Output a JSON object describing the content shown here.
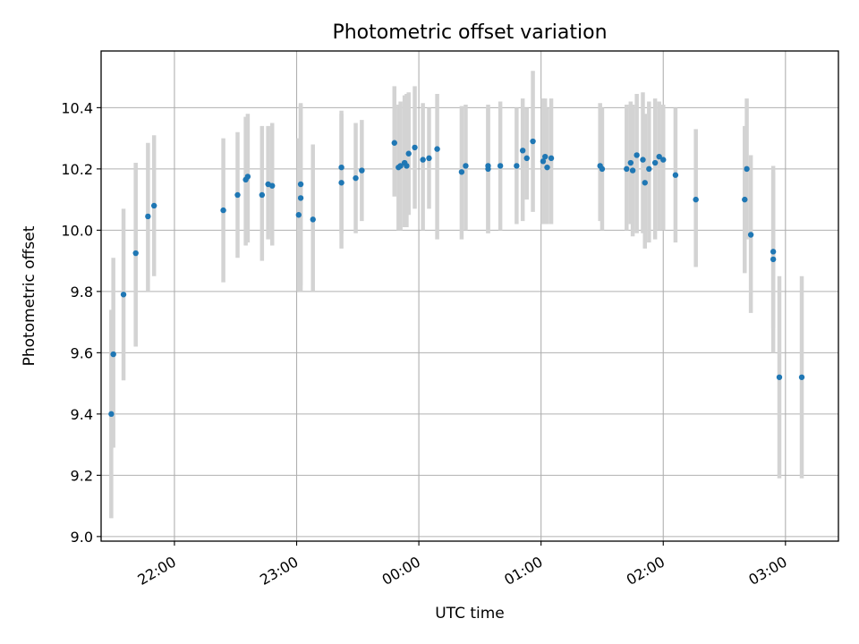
{
  "chart_data": {
    "type": "scatter",
    "title": "Photometric offset variation",
    "xlabel": "UTC time",
    "ylabel": "Photometric offset",
    "ylim": [
      8.985,
      10.585
    ],
    "xlim": [
      "21:24",
      "03:26"
    ],
    "x_ticks": [
      "22:00",
      "23:00",
      "00:00",
      "01:00",
      "02:00",
      "03:00"
    ],
    "y_ticks": [
      9.0,
      9.2,
      9.4,
      9.6,
      9.8,
      10.0,
      10.2,
      10.4
    ],
    "grid": true,
    "colors": {
      "point": "#1f77b4",
      "errorbar": "#d3d3d3"
    },
    "series": [
      {
        "x": [
          "21:29",
          "21:30",
          "21:35",
          "21:41",
          "21:47",
          "21:50",
          "22:24",
          "22:31",
          "22:35",
          "22:36",
          "22:43",
          "22:46",
          "22:48",
          "23:01",
          "23:02",
          "23:02",
          "23:08",
          "23:22",
          "23:22",
          "23:29",
          "23:32",
          "23:48",
          "23:50",
          "23:51",
          "23:53",
          "23:54",
          "23:55",
          "23:58",
          "00:02",
          "00:05",
          "00:09",
          "00:21",
          "00:23",
          "00:34",
          "00:34",
          "00:40",
          "00:48",
          "00:51",
          "00:53",
          "00:56",
          "01:01",
          "01:02",
          "01:03",
          "01:05",
          "01:29",
          "01:30",
          "01:42",
          "01:44",
          "01:45",
          "01:47",
          "01:50",
          "01:51",
          "01:53",
          "01:56",
          "01:58",
          "02:00",
          "02:06",
          "02:16",
          "02:40",
          "02:41",
          "02:43",
          "02:54",
          "02:54",
          "02:57",
          "03:08"
        ],
        "y": [
          9.4,
          9.595,
          9.79,
          9.925,
          10.045,
          10.08,
          10.065,
          10.115,
          10.165,
          10.175,
          10.115,
          10.15,
          10.145,
          10.05,
          10.15,
          10.105,
          10.035,
          10.155,
          10.205,
          10.17,
          10.195,
          10.285,
          10.205,
          10.21,
          10.22,
          10.21,
          10.25,
          10.27,
          10.23,
          10.235,
          10.265,
          10.19,
          10.21,
          10.2,
          10.21,
          10.21,
          10.21,
          10.26,
          10.235,
          10.29,
          10.225,
          10.24,
          10.205,
          10.235,
          10.21,
          10.2,
          10.2,
          10.22,
          10.195,
          10.245,
          10.23,
          10.155,
          10.2,
          10.22,
          10.24,
          10.23,
          10.18,
          10.1,
          10.1,
          10.2,
          9.985,
          9.93,
          9.905,
          9.52,
          9.52
        ],
        "y_low": [
          9.06,
          9.29,
          9.51,
          9.62,
          9.8,
          9.85,
          9.83,
          9.91,
          9.95,
          9.96,
          9.9,
          9.97,
          9.95,
          9.8,
          9.82,
          9.8,
          9.8,
          9.94,
          9.99,
          9.99,
          10.03,
          10.11,
          10.0,
          10.0,
          10.01,
          10.01,
          10.05,
          10.07,
          10.0,
          10.07,
          9.97,
          9.97,
          10.0,
          9.99,
          9.99,
          10.0,
          10.02,
          10.03,
          10.1,
          10.06,
          10.02,
          10.02,
          10.02,
          10.02,
          10.03,
          10.0,
          10.0,
          10.02,
          9.98,
          9.99,
          9.99,
          9.94,
          9.96,
          9.97,
          10.0,
          10.0,
          9.96,
          9.88,
          9.86,
          9.97,
          9.73,
          9.68,
          9.6,
          9.19,
          9.19
        ],
        "y_high": [
          9.74,
          9.91,
          10.07,
          10.22,
          10.285,
          10.31,
          10.3,
          10.32,
          10.37,
          10.38,
          10.34,
          10.34,
          10.35,
          10.3,
          10.415,
          10.41,
          10.28,
          10.38,
          10.39,
          10.35,
          10.36,
          10.47,
          10.41,
          10.42,
          10.44,
          10.445,
          10.45,
          10.47,
          10.415,
          10.4,
          10.445,
          10.405,
          10.41,
          10.4,
          10.41,
          10.42,
          10.4,
          10.43,
          10.4,
          10.52,
          10.43,
          10.43,
          10.4,
          10.43,
          10.415,
          10.4,
          10.41,
          10.42,
          10.41,
          10.445,
          10.45,
          10.38,
          10.42,
          10.43,
          10.42,
          10.41,
          10.4,
          10.33,
          10.34,
          10.43,
          10.245,
          10.19,
          10.21,
          9.85,
          9.85
        ]
      }
    ]
  }
}
